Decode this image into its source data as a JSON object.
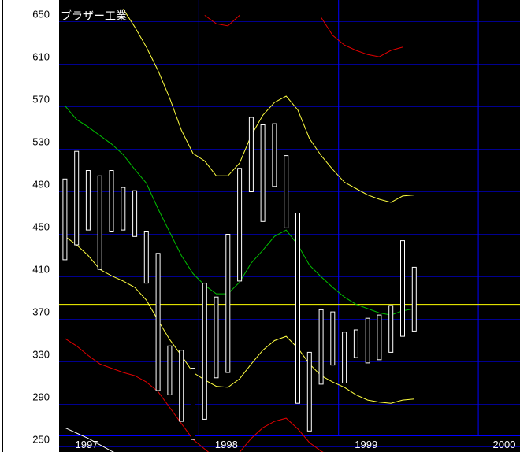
{
  "chart_data": {
    "type": "range-bar",
    "title": "ブラザー工業",
    "xlabel": "",
    "ylabel": "",
    "ylim": [
      250,
      660
    ],
    "yticks": [
      250,
      290,
      330,
      370,
      410,
      450,
      490,
      530,
      570,
      610,
      650
    ],
    "xtick_labels": [
      "1997",
      "1998",
      "1999",
      "2000"
    ],
    "grid": true,
    "reference_line": 384,
    "months": [
      "1997-01",
      "1997-02",
      "1997-03",
      "1997-04",
      "1997-05",
      "1997-06",
      "1997-07",
      "1997-08",
      "1997-09",
      "1997-10",
      "1997-11",
      "1997-12",
      "1998-01",
      "1998-02",
      "1998-03",
      "1998-04",
      "1998-05",
      "1998-06",
      "1998-07",
      "1998-08",
      "1998-09",
      "1998-10",
      "1998-11",
      "1998-12",
      "1999-01",
      "1999-02",
      "1999-03",
      "1999-04",
      "1999-05",
      "1999-06",
      "1999-07"
    ],
    "high": [
      502,
      528,
      510,
      505,
      510,
      494,
      491,
      453,
      432,
      345,
      341,
      324,
      404,
      391,
      450,
      512,
      560,
      553,
      554,
      524,
      470,
      339,
      379,
      377,
      358,
      360,
      371,
      374,
      383,
      444,
      419
    ],
    "low": [
      426,
      440,
      454,
      417,
      453,
      454,
      448,
      404,
      303,
      299,
      274,
      257,
      276,
      315,
      320,
      406,
      490,
      462,
      495,
      456,
      291,
      265,
      309,
      327,
      310,
      334,
      329,
      332,
      339,
      354,
      359
    ],
    "lines": [
      {
        "color": "#00c000",
        "values": [
          571,
          558,
          551,
          543,
          535,
          525,
          511,
          498,
          474,
          452,
          430,
          413,
          402,
          394,
          394,
          405,
          423,
          435,
          448,
          454,
          440,
          421,
          410,
          400,
          391,
          384,
          380,
          376,
          374,
          378,
          380
        ]
      },
      {
        "color": "#ffff40",
        "values": [
          null,
          null,
          null,
          null,
          null,
          662,
          645,
          626,
          604,
          578,
          548,
          526,
          519,
          505,
          505,
          517,
          543,
          562,
          574,
          580,
          567,
          540,
          524,
          511,
          499,
          493,
          487,
          483,
          480,
          486,
          487
        ]
      },
      {
        "color": "#ffff40",
        "values": [
          448,
          440,
          430,
          417,
          411,
          406,
          400,
          388,
          369,
          351,
          336,
          320,
          313,
          307,
          306,
          314,
          328,
          341,
          350,
          354,
          343,
          328,
          317,
          311,
          306,
          299,
          294,
          292,
          291,
          294,
          295
        ]
      },
      {
        "color": "#e00000",
        "values": [
          null,
          null,
          null,
          null,
          null,
          null,
          null,
          null,
          null,
          null,
          null,
          null,
          656,
          648,
          646,
          656,
          null,
          null,
          null,
          null,
          null,
          null,
          654,
          637,
          628,
          623,
          619,
          617,
          623,
          626,
          null
        ]
      },
      {
        "color": "#e00000",
        "values": [
          352,
          345,
          336,
          328,
          324,
          320,
          317,
          311,
          302,
          287,
          272,
          257,
          248,
          239,
          237,
          245,
          258,
          268,
          274,
          277,
          267,
          254,
          246,
          240,
          234,
          null,
          null,
          null,
          null,
          null,
          null
        ]
      },
      {
        "color": "#ffffff",
        "values": [
          268,
          263,
          258,
          252,
          246,
          241,
          236,
          null,
          null,
          null,
          null,
          null,
          null,
          null,
          null,
          null,
          null,
          null,
          null,
          null,
          null,
          null,
          null,
          null,
          null,
          null,
          null,
          null,
          null,
          null,
          null
        ]
      }
    ],
    "colors": {
      "background": "#000000",
      "grid": "#000090",
      "year_line": "#0000ff",
      "bar": "#ffffff",
      "reference": "#ffff00"
    }
  }
}
